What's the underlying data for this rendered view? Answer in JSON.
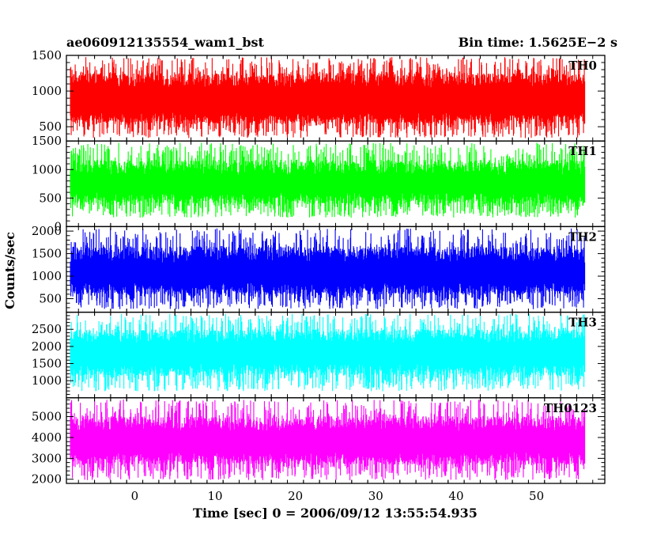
{
  "header": {
    "title": "ae060912135554_wam1_bst",
    "bin_time": "Bin time: 1.5625E−2 s"
  },
  "chart_data": {
    "type": "line",
    "title": "ae060912135554_wam1_bst",
    "subtitle": "Bin time: 1.5625E−2 s",
    "xlabel": "Time [sec] 0 = 2006/09/12 13:55:54.935",
    "ylabel": "Counts/sec",
    "xlim": [
      -8.5,
      58.5
    ],
    "data_xrange": [
      -8.0,
      56.0
    ],
    "bin_time": 0.015625,
    "x_ticks": [
      0,
      10,
      20,
      30,
      40,
      50
    ],
    "x_tick_labels": [
      "0",
      "10",
      "20",
      "30",
      "40",
      "50"
    ],
    "grid": false,
    "panels": [
      {
        "name": "TH0",
        "color": "#ff0000",
        "ylim": [
          300,
          1500
        ],
        "y_ticks": [
          500,
          1000,
          1500
        ],
        "y_tick_labels": [
          "500",
          "1000",
          "1500"
        ],
        "band": [
          700,
          1050
        ],
        "peak_range": [
          300,
          1500
        ]
      },
      {
        "name": "TH1",
        "color": "#00ff00",
        "ylim": [
          0,
          1500
        ],
        "y_ticks": [
          0,
          500,
          1000,
          1500
        ],
        "y_tick_labels": [
          "0",
          "500",
          "1000",
          "1500"
        ],
        "band": [
          600,
          900
        ],
        "peak_range": [
          100,
          1500
        ]
      },
      {
        "name": "TH2",
        "color": "#0000ff",
        "ylim": [
          200,
          2100
        ],
        "y_ticks": [
          500,
          1000,
          1500,
          2000
        ],
        "y_tick_labels": [
          "500",
          "1000",
          "1500",
          "2000"
        ],
        "band": [
          850,
          1300
        ],
        "peak_range": [
          200,
          2100
        ]
      },
      {
        "name": "TH3",
        "color": "#00ffff",
        "ylim": [
          500,
          3000
        ],
        "y_ticks": [
          1000,
          1500,
          2000,
          2500
        ],
        "y_tick_labels": [
          "1000",
          "1500",
          "2000",
          "2500"
        ],
        "band": [
          1500,
          2100
        ],
        "peak_range": [
          600,
          3000
        ]
      },
      {
        "name": "TH0123",
        "color": "#ff00ff",
        "ylim": [
          1800,
          5900
        ],
        "y_ticks": [
          2000,
          3000,
          4000,
          5000
        ],
        "y_tick_labels": [
          "2000",
          "3000",
          "4000",
          "5000"
        ],
        "band": [
          3300,
          4300
        ],
        "peak_range": [
          1800,
          5900
        ]
      }
    ]
  }
}
